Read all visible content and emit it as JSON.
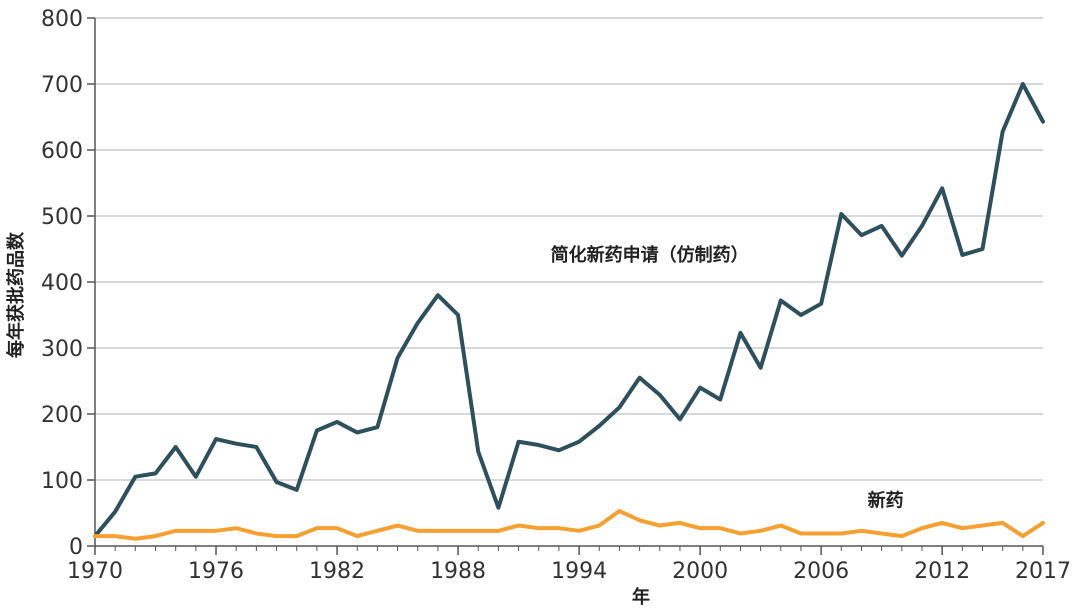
{
  "chart_data": {
    "type": "line",
    "xlabel": "年",
    "ylabel": "每年获批药品数",
    "xlim": [
      1970,
      2017
    ],
    "ylim": [
      0,
      800
    ],
    "xticks": [
      1970,
      1976,
      1982,
      1988,
      1994,
      2000,
      2006,
      2012,
      2017
    ],
    "yticks": [
      0,
      100,
      200,
      300,
      400,
      500,
      600,
      700,
      800
    ],
    "grid": "horizontal",
    "x": [
      1970,
      1971,
      1972,
      1973,
      1974,
      1975,
      1976,
      1977,
      1978,
      1979,
      1980,
      1981,
      1982,
      1983,
      1984,
      1985,
      1986,
      1987,
      1988,
      1989,
      1990,
      1991,
      1992,
      1993,
      1994,
      1995,
      1996,
      1997,
      1998,
      1999,
      2000,
      2001,
      2002,
      2003,
      2004,
      2005,
      2006,
      2007,
      2008,
      2009,
      2010,
      2011,
      2012,
      2013,
      2014,
      2015,
      2016,
      2017
    ],
    "series": [
      {
        "name": "简化新药申请（仿制药）",
        "color": "#2e4f5c",
        "values": [
          15,
          52,
          105,
          110,
          150,
          105,
          162,
          155,
          150,
          97,
          85,
          175,
          188,
          172,
          180,
          285,
          338,
          380,
          350,
          143,
          58,
          158,
          153,
          145,
          158,
          182,
          210,
          255,
          229,
          192,
          240,
          222,
          323,
          270,
          372,
          350,
          367,
          503,
          471,
          485,
          440,
          485,
          542,
          441,
          450,
          628,
          700,
          643
        ]
      },
      {
        "name": "新药",
        "color": "#f5a031",
        "values": [
          15,
          15,
          11,
          15,
          23,
          23,
          23,
          27,
          19,
          15,
          15,
          27,
          27,
          15,
          23,
          31,
          23,
          23,
          23,
          23,
          23,
          31,
          27,
          27,
          23,
          31,
          53,
          39,
          31,
          35,
          27,
          27,
          19,
          23,
          31,
          19,
          19,
          19,
          23,
          19,
          15,
          27,
          35,
          27,
          31,
          35,
          15,
          35
        ]
      }
    ],
    "labels": [
      {
        "series": 0,
        "text": "简化新药申请（仿制药）",
        "x": 1997.5,
        "y": 432
      },
      {
        "series": 1,
        "text": "新药",
        "x": 2009.2,
        "y": 60
      }
    ]
  }
}
